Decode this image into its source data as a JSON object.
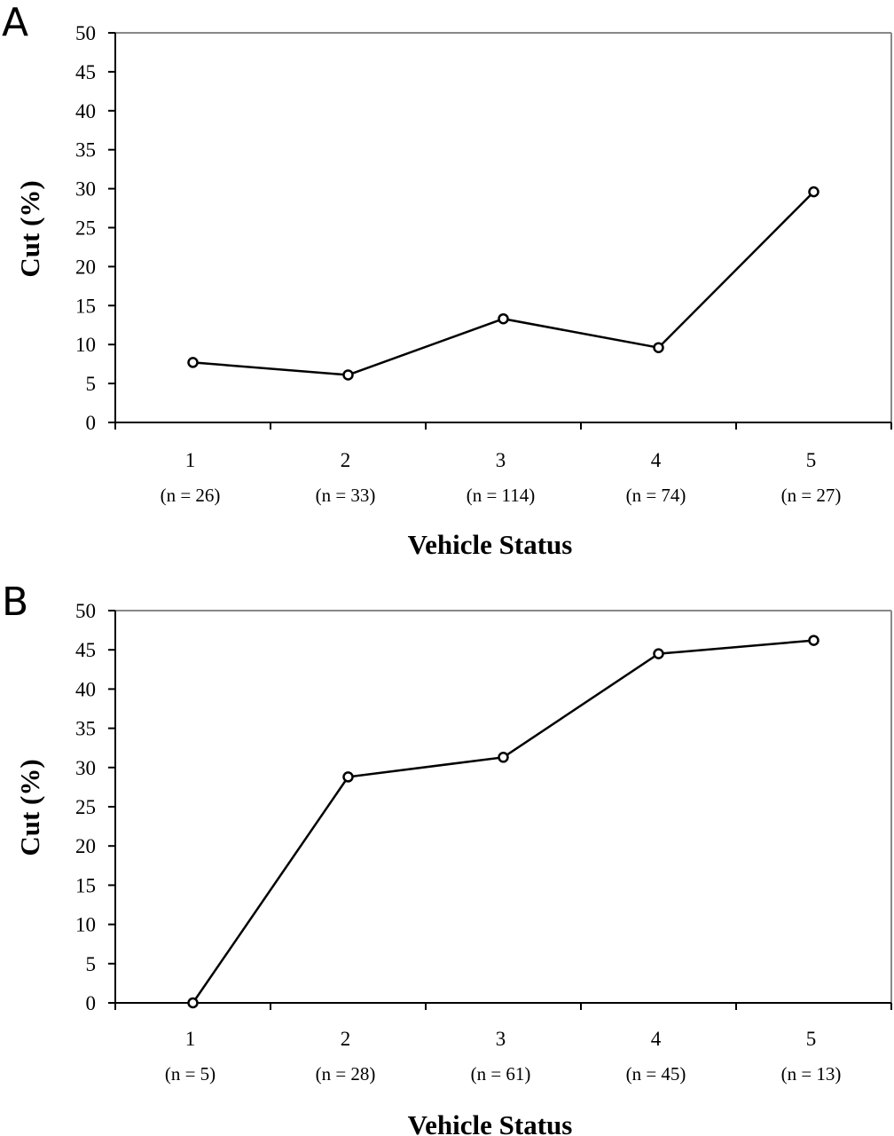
{
  "chart_data": [
    {
      "type": "line",
      "panel_label": "A",
      "categories": [
        "1",
        "2",
        "3",
        "4",
        "5"
      ],
      "sample_sizes": [
        "(n = 26)",
        "(n = 33)",
        "(n = 114)",
        "(n = 74)",
        "(n = 27)"
      ],
      "values": [
        7.7,
        6.1,
        13.3,
        9.6,
        29.6
      ],
      "xlabel": "Vehicle Status",
      "ylabel": "Cut (%)",
      "ylim": [
        0,
        50
      ],
      "yticks": [
        "0",
        "5",
        "10",
        "15",
        "20",
        "25",
        "30",
        "35",
        "40",
        "45",
        "50"
      ],
      "marker": "open-circle",
      "grid": false,
      "line_color": "#000000"
    },
    {
      "type": "line",
      "panel_label": "B",
      "categories": [
        "1",
        "2",
        "3",
        "4",
        "5"
      ],
      "sample_sizes": [
        "(n = 5)",
        "(n = 28)",
        "(n = 61)",
        "(n = 45)",
        "(n = 13)"
      ],
      "values": [
        0,
        28.8,
        31.3,
        44.5,
        46.2
      ],
      "xlabel": "Vehicle Status",
      "ylabel": "Cut (%)",
      "ylim": [
        0,
        50
      ],
      "yticks": [
        "0",
        "5",
        "10",
        "15",
        "20",
        "25",
        "30",
        "35",
        "40",
        "45",
        "50"
      ],
      "marker": "open-circle",
      "grid": false,
      "line_color": "#000000"
    }
  ]
}
